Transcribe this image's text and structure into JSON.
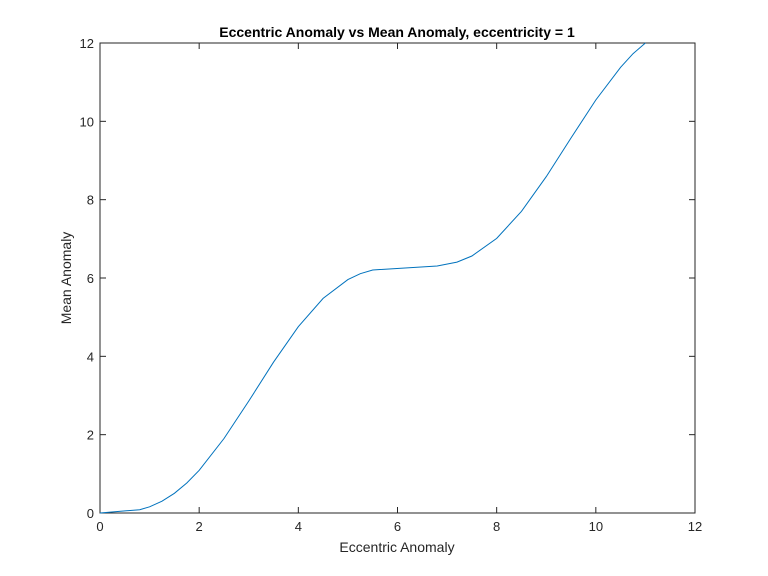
{
  "chart_data": {
    "type": "line",
    "title": "Eccentric Anomaly vs Mean Anomaly, eccentricity = 1",
    "xlabel": "Eccentric Anomaly",
    "ylabel": "Mean Anomaly",
    "xlim": [
      0,
      12
    ],
    "ylim": [
      0,
      12
    ],
    "xticks": [
      0,
      2,
      4,
      6,
      8,
      10,
      12
    ],
    "yticks": [
      0,
      2,
      4,
      6,
      8,
      10,
      12
    ],
    "grid": false,
    "line_color": "#0072BD",
    "series": [
      {
        "x": [
          0,
          0.8,
          1.0,
          1.25,
          1.5,
          1.75,
          2.0,
          2.5,
          3.0,
          3.5,
          4.0,
          4.5,
          5.0,
          5.25,
          5.5,
          6.8,
          7.2,
          7.5,
          8.0,
          8.5,
          9.0,
          9.5,
          10.0,
          10.5,
          10.75,
          11.0
        ],
        "y": [
          0,
          0.083,
          0.159,
          0.301,
          0.503,
          0.766,
          1.091,
          1.902,
          2.859,
          3.851,
          4.757,
          5.478,
          5.959,
          6.109,
          6.205,
          6.306,
          6.407,
          6.562,
          7.011,
          7.702,
          8.588,
          9.575,
          10.544,
          11.38,
          11.727,
          12.0
        ]
      }
    ]
  }
}
